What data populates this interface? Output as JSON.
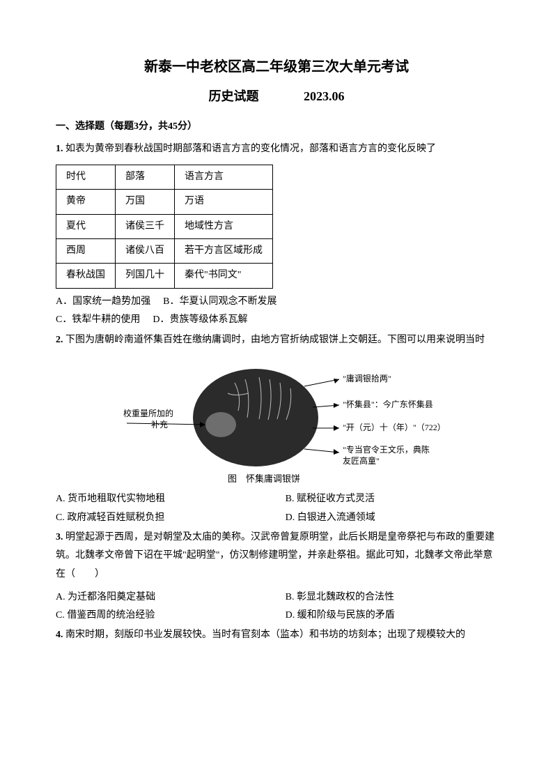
{
  "title_main": "新泰一中老校区高二年级第三次大单元考试",
  "title_subject": "历史试题",
  "title_date": "2023.06",
  "section1": "一、选择题（每题3分，共45分）",
  "q1": {
    "prefix": "1.",
    "text": "如表为黄帝到春秋战国时期部落和语言方言的变化情况，部落和语言方言的变化反映了",
    "table": {
      "rows": [
        [
          "时代",
          "部落",
          "语言方言"
        ],
        [
          "黄帝",
          "万国",
          "万语"
        ],
        [
          "夏代",
          "诸侯三千",
          "地域性方言"
        ],
        [
          "西周",
          "诸侯八百",
          "若干方言区域形成"
        ],
        [
          "春秋战国",
          "列国几十",
          "秦代\"书同文\""
        ]
      ]
    },
    "optA": "A．国家统一趋势加强",
    "optB": "B．华夏认同观念不断发展",
    "optC": "C．铁犁牛耕的使用",
    "optD": "D．贵族等级体系瓦解"
  },
  "q2": {
    "prefix": "2.",
    "text": "下图为唐朝岭南道怀集百姓在缴纳庸调时，由地方官折纳成银饼上交朝廷。下图可以用来说明当时",
    "figure": {
      "caption": "图　怀集庸调银饼",
      "left_label": "校重量所加的补充",
      "r1": "\"庸调银拾两\"",
      "r2": "\"怀集县\"：今广东怀集县",
      "r3": "\"开（元）十（年）\"（722）",
      "r4": "\"专当官令王文乐，典陈友匠高童\"",
      "coin_color": "#2b2b2b",
      "spot_color": "#6e6e6e"
    },
    "optA": "A. 货币地租取代实物地租",
    "optB": "B. 赋税征收方式灵活",
    "optC": "C. 政府减轻百姓赋税负担",
    "optD": "D. 白银进入流通领域"
  },
  "q3": {
    "prefix": "3.",
    "text": "明堂起源于西周，是对朝堂及太庙的美称。汉武帝曾复原明堂，此后长期是皇帝祭祀与布政的重要建筑。北魏孝文帝曾下诏在平城\"起明堂\"，仿汉制修建明堂，并亲赴祭祖。据此可知，北魏孝文帝此举意在（　　）",
    "optA": "A. 为迁都洛阳奠定基础",
    "optB": "B. 彰显北魏政权的合法性",
    "optC": "C. 借鉴西周的统治经验",
    "optD": "D. 缓和阶级与民族的矛盾"
  },
  "q4": {
    "prefix": "4.",
    "text": "南宋时期，刻版印书业发展较快。当时有官刻本（监本）和书坊的坊刻本；出现了规模较大的"
  }
}
